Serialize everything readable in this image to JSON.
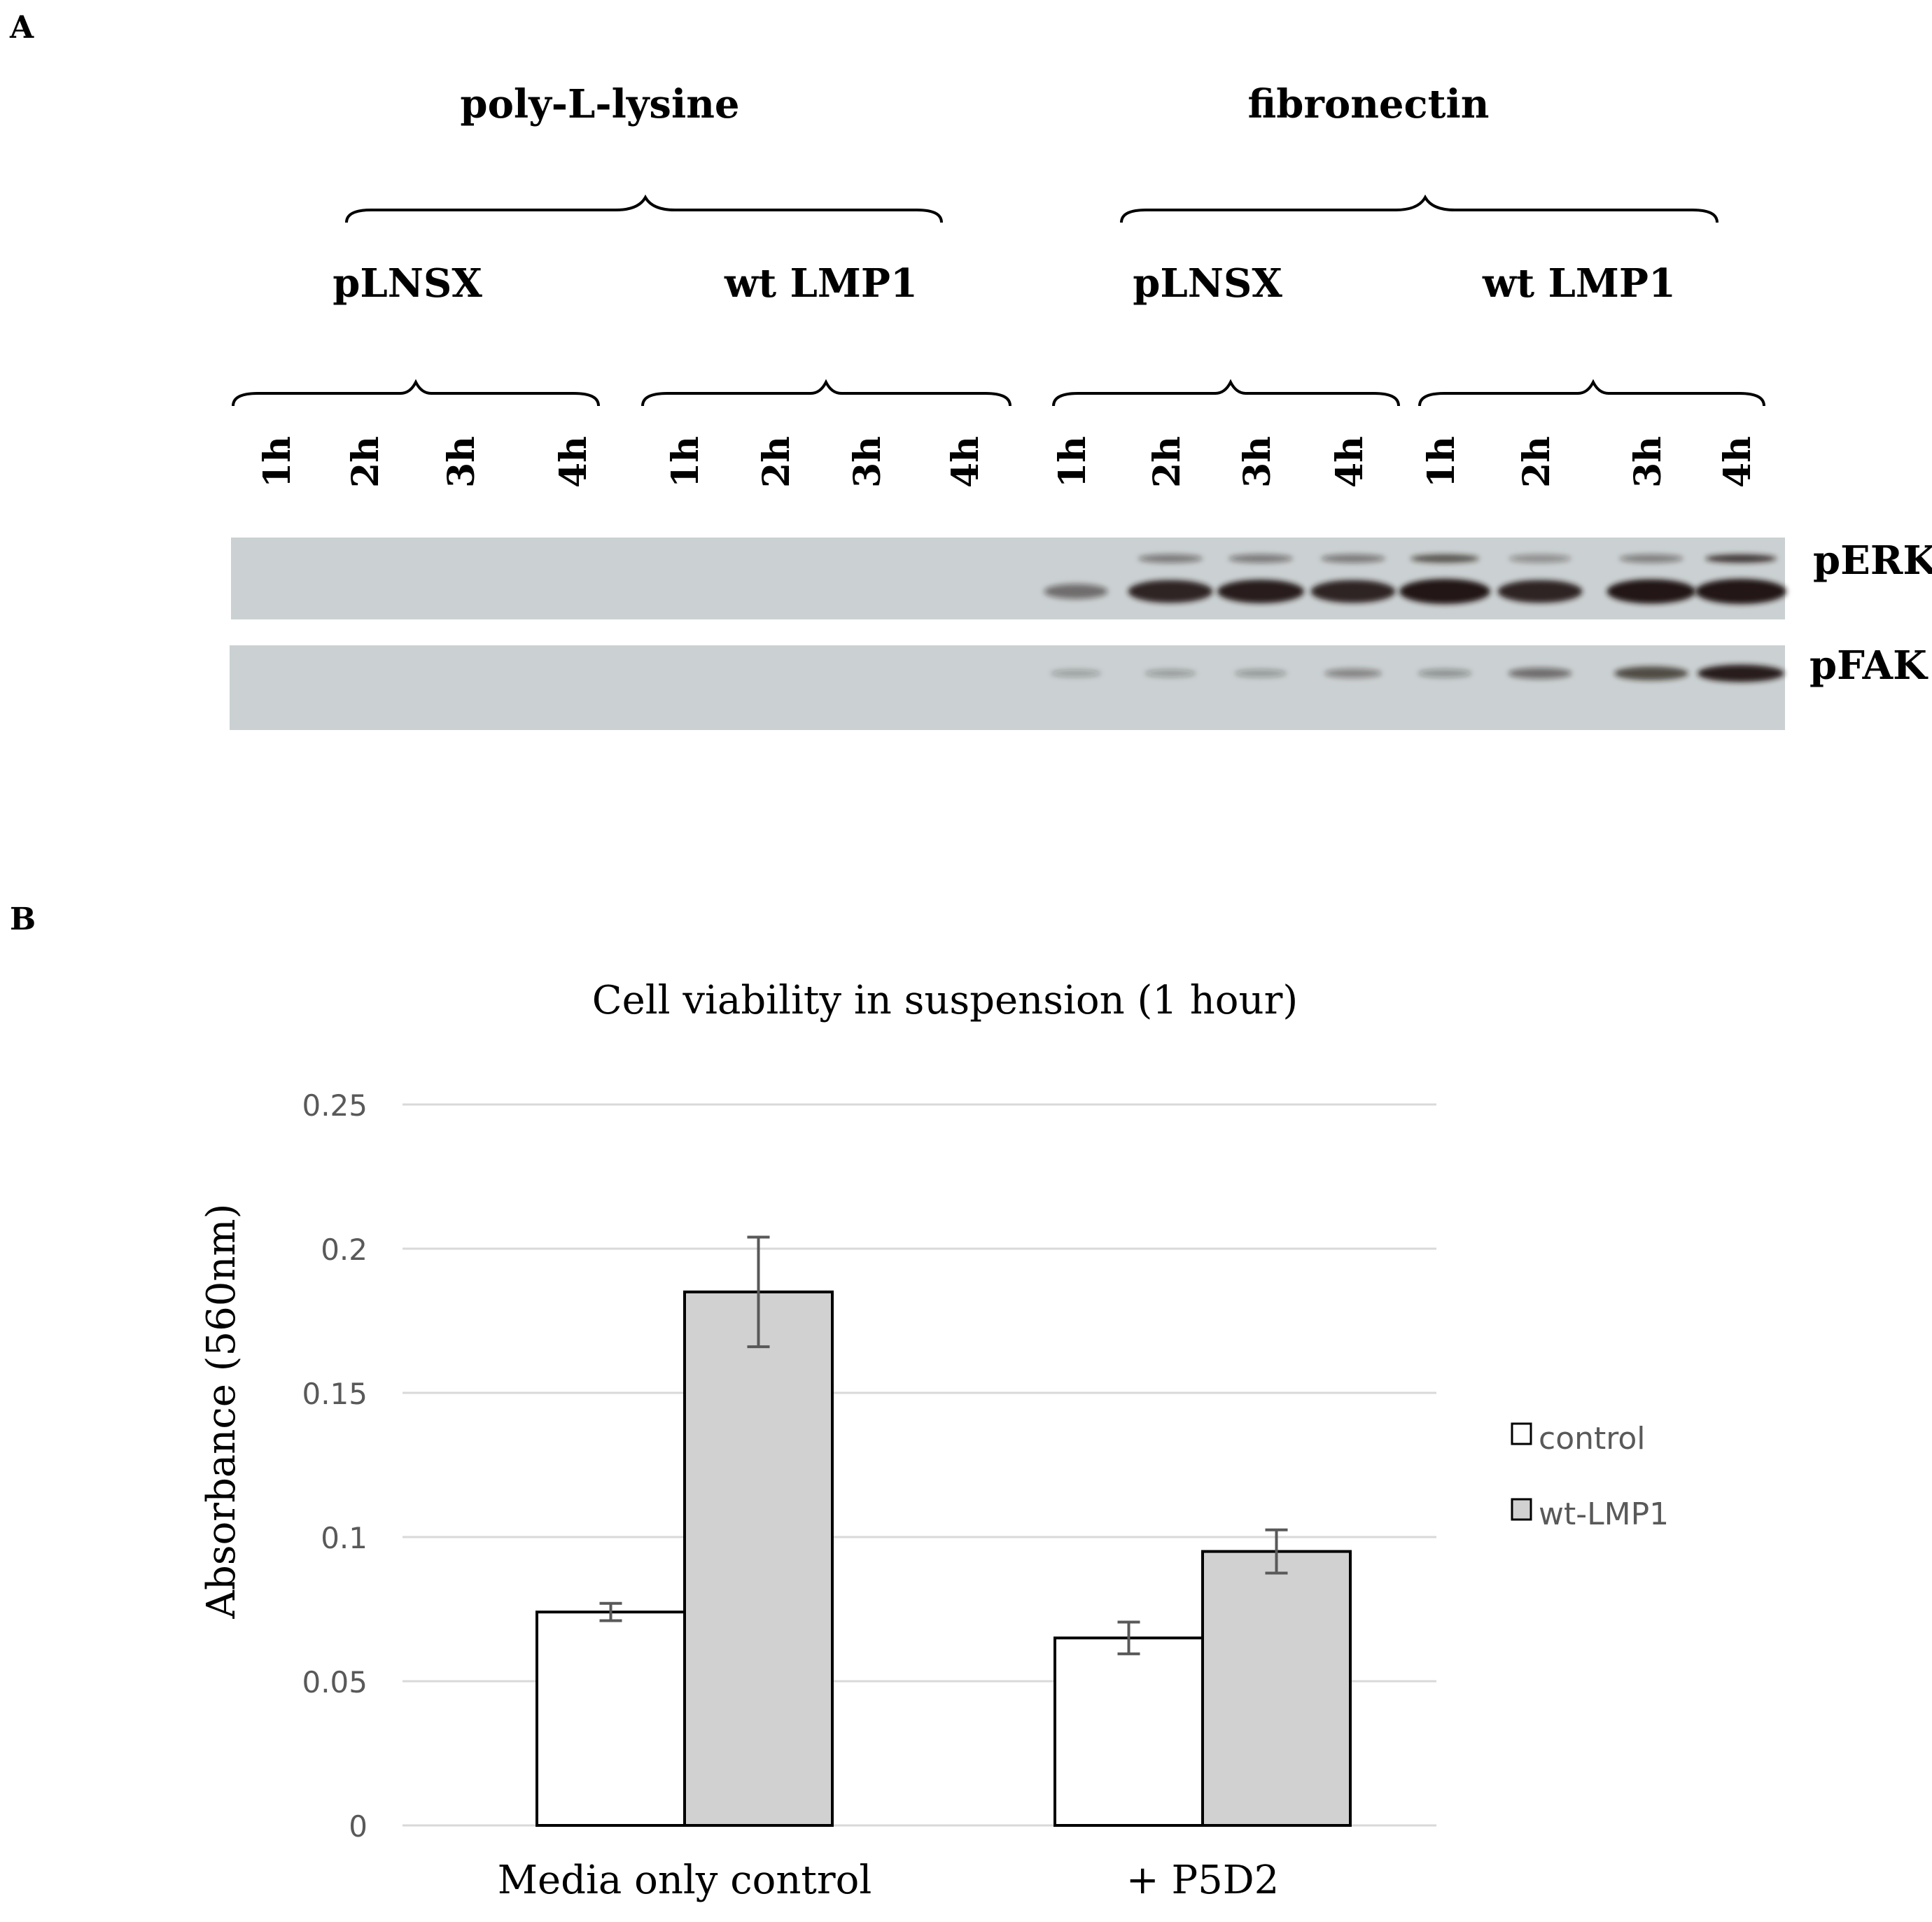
{
  "panel_a": {
    "label": "A",
    "substrates": [
      "poly-L-lysine",
      "fibronectin"
    ],
    "constructs": [
      "pLNSX",
      "wt LMP1",
      "pLNSX",
      "wt LMP1"
    ],
    "timepoints": [
      "1h",
      "2h",
      "3h",
      "4h",
      "1h",
      "2h",
      "3h",
      "4h",
      "1h",
      "2h",
      "3h",
      "4h",
      "1h",
      "2h",
      "3h",
      "4h"
    ],
    "blots": [
      {
        "name": "pERK",
        "band_intensity": [
          0,
          0,
          0,
          0,
          0,
          0,
          0,
          0,
          0.35,
          0.85,
          0.9,
          0.85,
          1.0,
          0.85,
          0.95,
          1.0
        ],
        "upper_band_intensity": [
          0,
          0,
          0,
          0,
          0,
          0,
          0,
          0,
          0,
          0.2,
          0.2,
          0.2,
          0.35,
          0.12,
          0.18,
          0.45
        ]
      },
      {
        "name": "pFAK",
        "band_intensity": [
          0,
          0,
          0,
          0,
          0,
          0,
          0,
          0,
          0.04,
          0.06,
          0.08,
          0.2,
          0.12,
          0.35,
          0.6,
          0.9
        ]
      }
    ]
  },
  "panel_b": {
    "label": "B"
  },
  "chart_data": {
    "type": "bar",
    "title": "Cell viability in suspension (1 hour)",
    "xlabel": "",
    "ylabel": "Absorbance (560nm)",
    "ylim": [
      0,
      0.25
    ],
    "yticks": [
      "0",
      "0.05",
      "0.1",
      "0.15",
      "0.2",
      "0.25"
    ],
    "categories": [
      "Media only control",
      "+ P5D2"
    ],
    "series": [
      {
        "name": "control",
        "values": [
          0.074,
          0.065
        ],
        "errors": [
          0.003,
          0.0055
        ],
        "color": "#ffffff"
      },
      {
        "name": "wt-LMP1",
        "values": [
          0.185,
          0.095
        ],
        "errors": [
          0.019,
          0.0075
        ],
        "color": "#d1d1d1"
      }
    ],
    "grid": true,
    "legend_position": "right"
  }
}
